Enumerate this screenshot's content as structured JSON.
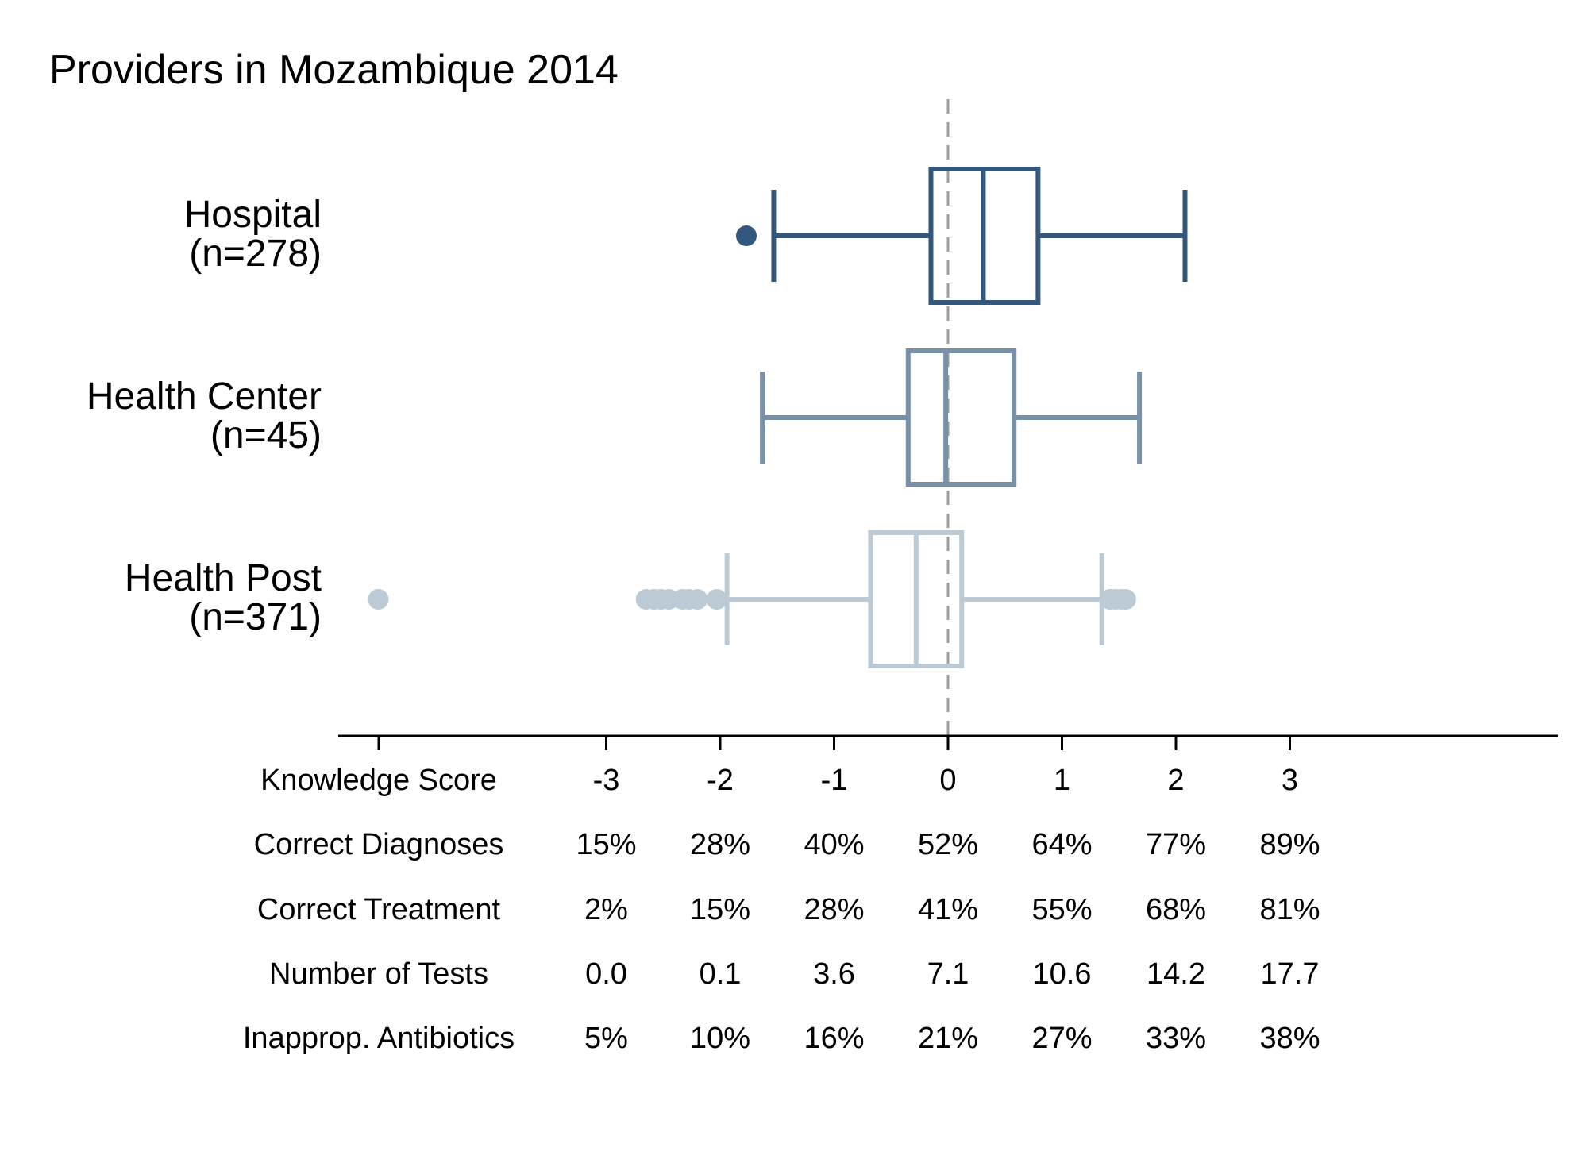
{
  "chart_data": {
    "type": "box",
    "title": "Providers in Mozambique 2014",
    "xlim": [
      -5,
      5.4
    ],
    "reference_line_x": 0,
    "colors": {
      "Hospital": "#34587D",
      "Health Center": "#7891A8",
      "Health Post": "#BCCAD6",
      "axis": "#000000",
      "reference_line": "#9E9E9E"
    },
    "groups": [
      {
        "name": "Hospital",
        "n_label": "(n=278)",
        "whisker_low": -1.53,
        "q1": -0.15,
        "median": 0.31,
        "q3": 0.79,
        "whisker_high": 2.08,
        "outliers": [
          -1.77
        ]
      },
      {
        "name": "Health Center",
        "n_label": "(n=45)",
        "whisker_low": -1.63,
        "q1": -0.35,
        "median": -0.02,
        "q3": 0.58,
        "whisker_high": 1.68,
        "outliers": []
      },
      {
        "name": "Health Post",
        "n_label": "(n=371)",
        "whisker_low": -1.94,
        "q1": -0.68,
        "median": -0.28,
        "q3": 0.12,
        "whisker_high": 1.35,
        "outliers": [
          -5.0,
          -2.65,
          -2.58,
          -2.52,
          -2.45,
          -2.33,
          -2.27,
          -2.2,
          -2.03,
          1.42,
          1.47,
          1.52,
          1.56
        ]
      }
    ],
    "axis_table": {
      "ticks": [
        -3,
        -2,
        -1,
        0,
        1,
        2,
        3
      ],
      "rows": [
        {
          "label": "Knowledge Score",
          "values": [
            "-3",
            "-2",
            "-1",
            "0",
            "1",
            "2",
            "3"
          ]
        },
        {
          "label": "Correct Diagnoses",
          "values": [
            "15%",
            "28%",
            "40%",
            "52%",
            "64%",
            "77%",
            "89%"
          ]
        },
        {
          "label": "Correct Treatment",
          "values": [
            "2%",
            "15%",
            "28%",
            "41%",
            "55%",
            "68%",
            "81%"
          ]
        },
        {
          "label": "Number of Tests",
          "values": [
            "0.0",
            "0.1",
            "3.6",
            "7.1",
            "10.6",
            "14.2",
            "17.7"
          ]
        },
        {
          "label": "Inapprop. Antibiotics",
          "values": [
            "5%",
            "10%",
            "16%",
            "21%",
            "27%",
            "33%",
            "38%"
          ]
        }
      ]
    }
  }
}
